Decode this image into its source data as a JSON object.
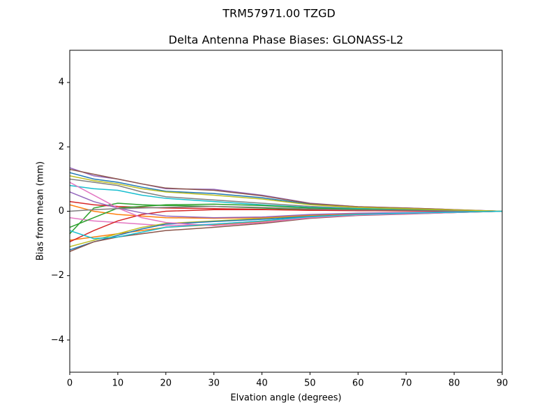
{
  "chart_data": {
    "type": "line",
    "suptitle": "TRM57971.00      TZGD",
    "title": "Delta Antenna Phase Biases: GLONASS-L2",
    "xlabel": "Elvation angle (degrees)",
    "ylabel": "Bias from mean (mm)",
    "x": [
      0,
      5,
      10,
      15,
      20,
      30,
      40,
      50,
      60,
      70,
      80,
      90
    ],
    "xlim": [
      0,
      90
    ],
    "xticks": [
      0,
      10,
      20,
      30,
      40,
      50,
      60,
      70,
      80,
      90
    ],
    "ylim": [
      -5,
      5
    ],
    "yticks": [
      {
        "value": -4,
        "label": "−4"
      },
      {
        "value": -2,
        "label": "−2"
      },
      0,
      2,
      4
    ],
    "series": [
      {
        "color": "#1f77b4",
        "values": [
          1.2,
          1.0,
          0.9,
          0.75,
          0.62,
          0.55,
          0.42,
          0.22,
          0.13,
          0.08,
          0.04,
          0
        ]
      },
      {
        "color": "#ff7f0e",
        "values": [
          -0.9,
          -0.8,
          -0.7,
          -0.6,
          -0.5,
          -0.42,
          -0.33,
          -0.2,
          -0.12,
          -0.08,
          -0.04,
          0
        ]
      },
      {
        "color": "#2ca02c",
        "values": [
          -0.7,
          0.1,
          0.25,
          0.2,
          0.18,
          0.15,
          0.1,
          0.05,
          0.03,
          0.02,
          0.01,
          0
        ]
      },
      {
        "color": "#d62728",
        "values": [
          0.3,
          0.2,
          0.15,
          0.12,
          0.1,
          0.08,
          0.06,
          0.03,
          0.02,
          0.01,
          0,
          0
        ]
      },
      {
        "color": "#9467bd",
        "values": [
          1.35,
          1.1,
          1.0,
          0.85,
          0.7,
          0.68,
          0.5,
          0.25,
          0.14,
          0.1,
          0.05,
          0
        ]
      },
      {
        "color": "#8c564b",
        "values": [
          1.3,
          1.15,
          1.0,
          0.85,
          0.72,
          0.65,
          0.48,
          0.24,
          0.14,
          0.1,
          0.05,
          0
        ]
      },
      {
        "color": "#e377c2",
        "values": [
          -0.2,
          -0.3,
          -0.35,
          -0.4,
          -0.45,
          -0.4,
          -0.3,
          -0.18,
          -0.11,
          -0.07,
          -0.03,
          0
        ]
      },
      {
        "color": "#7f7f7f",
        "values": [
          1.0,
          0.9,
          0.8,
          0.6,
          0.45,
          0.35,
          0.25,
          0.15,
          0.09,
          0.05,
          0.02,
          0
        ]
      },
      {
        "color": "#bcbd22",
        "values": [
          -1.1,
          -0.9,
          -0.7,
          -0.5,
          -0.38,
          -0.3,
          -0.22,
          -0.14,
          -0.09,
          -0.06,
          -0.03,
          0
        ]
      },
      {
        "color": "#17becf",
        "values": [
          0.8,
          0.7,
          0.65,
          0.5,
          0.4,
          0.3,
          0.2,
          0.12,
          0.08,
          0.05,
          0.02,
          0
        ]
      },
      {
        "color": "#1f77b4",
        "values": [
          -1.2,
          -0.95,
          -0.75,
          -0.55,
          -0.4,
          -0.32,
          -0.25,
          -0.16,
          -0.1,
          -0.06,
          -0.03,
          0
        ]
      },
      {
        "color": "#ff7f0e",
        "values": [
          0.2,
          0.0,
          -0.1,
          -0.15,
          -0.2,
          -0.22,
          -0.2,
          -0.12,
          -0.08,
          -0.05,
          -0.02,
          0
        ]
      },
      {
        "color": "#2ca02c",
        "values": [
          -0.5,
          -0.2,
          0.1,
          0.15,
          0.2,
          0.22,
          0.18,
          0.1,
          0.06,
          0.04,
          0.02,
          0
        ]
      },
      {
        "color": "#d62728",
        "values": [
          -0.95,
          -0.6,
          -0.3,
          -0.1,
          0.0,
          0.05,
          0.05,
          0.03,
          0.02,
          0.01,
          0,
          0
        ]
      },
      {
        "color": "#9467bd",
        "values": [
          0.6,
          0.3,
          0.1,
          -0.05,
          -0.15,
          -0.2,
          -0.18,
          -0.1,
          -0.06,
          -0.04,
          -0.02,
          0
        ]
      },
      {
        "color": "#8c564b",
        "values": [
          -1.25,
          -0.95,
          -0.8,
          -0.7,
          -0.6,
          -0.5,
          -0.38,
          -0.22,
          -0.13,
          -0.09,
          -0.04,
          0
        ]
      },
      {
        "color": "#e377c2",
        "values": [
          0.9,
          0.5,
          0.1,
          -0.2,
          -0.35,
          -0.45,
          -0.35,
          -0.2,
          -0.12,
          -0.08,
          -0.04,
          0
        ]
      },
      {
        "color": "#7f7f7f",
        "values": [
          0.0,
          0.05,
          0.08,
          0.1,
          0.12,
          0.15,
          0.12,
          0.07,
          0.04,
          0.03,
          0.01,
          0
        ]
      },
      {
        "color": "#bcbd22",
        "values": [
          1.1,
          0.95,
          0.85,
          0.7,
          0.6,
          0.5,
          0.38,
          0.2,
          0.12,
          0.08,
          0.04,
          0
        ]
      },
      {
        "color": "#17becf",
        "values": [
          -0.6,
          -0.85,
          -0.8,
          -0.65,
          -0.5,
          -0.4,
          -0.3,
          -0.17,
          -0.1,
          -0.06,
          -0.03,
          0
        ]
      }
    ]
  }
}
